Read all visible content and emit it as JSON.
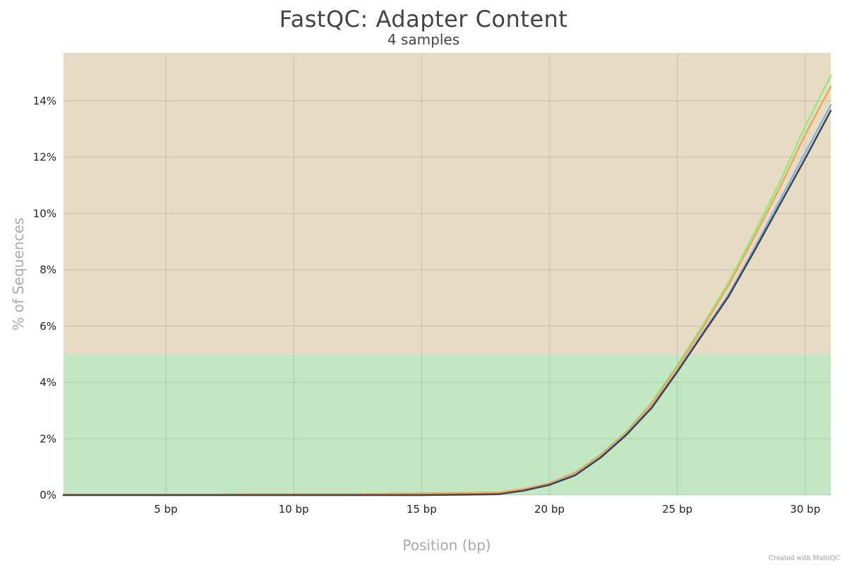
{
  "chart_data": {
    "type": "line",
    "title": "FastQC: Adapter Content",
    "subtitle": "4 samples",
    "xlabel": "Position (bp)",
    "ylabel": "% of Sequences",
    "xlim": [
      1,
      31
    ],
    "ylim": [
      0,
      15.7
    ],
    "x_ticks": [
      5,
      10,
      15,
      20,
      25,
      30
    ],
    "x_tick_labels": [
      "5 bp",
      "10 bp",
      "15 bp",
      "20 bp",
      "25 bp",
      "30 bp"
    ],
    "y_ticks": [
      0,
      2,
      4,
      6,
      8,
      10,
      12,
      14
    ],
    "y_tick_labels": [
      "0%",
      "2%",
      "4%",
      "6%",
      "8%",
      "10%",
      "12%",
      "14%"
    ],
    "grid": true,
    "bands": [
      {
        "from": 0,
        "to": 5,
        "color": "#c3e6c3"
      },
      {
        "from": 5,
        "to": 15.7,
        "color": "#e6dcc4"
      }
    ],
    "x": [
      1,
      2,
      3,
      4,
      5,
      6,
      7,
      8,
      9,
      10,
      11,
      12,
      13,
      14,
      15,
      16,
      17,
      18,
      19,
      20,
      21,
      22,
      23,
      24,
      25,
      26,
      27,
      28,
      29,
      30,
      31
    ],
    "series": [
      {
        "color": "#90ed7d",
        "values": [
          0.02,
          0.02,
          0.02,
          0.02,
          0.02,
          0.02,
          0.02,
          0.03,
          0.03,
          0.03,
          0.03,
          0.03,
          0.04,
          0.05,
          0.06,
          0.07,
          0.08,
          0.09,
          0.22,
          0.42,
          0.8,
          1.45,
          2.25,
          3.3,
          4.62,
          6.05,
          7.55,
          9.3,
          11.1,
          13.1,
          14.9
        ]
      },
      {
        "color": "#f7a35c",
        "values": [
          0.02,
          0.02,
          0.02,
          0.02,
          0.02,
          0.02,
          0.02,
          0.03,
          0.03,
          0.03,
          0.03,
          0.03,
          0.04,
          0.05,
          0.06,
          0.07,
          0.08,
          0.09,
          0.22,
          0.42,
          0.8,
          1.42,
          2.22,
          3.25,
          4.55,
          5.95,
          7.45,
          9.15,
          10.9,
          12.8,
          14.5
        ]
      },
      {
        "color": "#7cb5ec",
        "values": [
          0.0,
          0.0,
          0.0,
          0.0,
          0.0,
          0.0,
          0.0,
          0.0,
          0.0,
          0.0,
          0.0,
          0.0,
          0.0,
          0.0,
          0.0,
          0.01,
          0.02,
          0.03,
          0.17,
          0.38,
          0.73,
          1.36,
          2.17,
          3.14,
          4.42,
          5.78,
          7.12,
          8.75,
          10.45,
          12.15,
          13.85
        ]
      },
      {
        "color": "#434348",
        "values": [
          0.0,
          0.0,
          0.0,
          0.0,
          0.0,
          0.0,
          0.0,
          0.0,
          0.0,
          0.0,
          0.0,
          0.0,
          0.0,
          0.0,
          0.0,
          0.01,
          0.02,
          0.03,
          0.16,
          0.36,
          0.7,
          1.33,
          2.13,
          3.1,
          4.38,
          5.72,
          7.05,
          8.65,
          10.3,
          11.95,
          13.65
        ]
      }
    ]
  },
  "footer": {
    "credit": "Created with MultiQC"
  }
}
